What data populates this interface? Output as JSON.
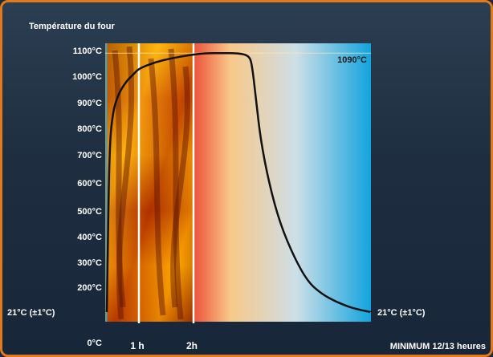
{
  "chart_data": {
    "type": "line",
    "title": "Température du four",
    "y_ticks": [
      "0°C",
      "21°C (±1°C)",
      "200°C",
      "300°C",
      "400°C",
      "500°C",
      "600°C",
      "700°C",
      "800°C",
      "900°C",
      "1000°C",
      "1100°C"
    ],
    "x_ticks": [
      "1 h",
      "2h"
    ],
    "x_end_label": "MINIMUM 12/13 heures",
    "peak_label": "1090°C",
    "end_label": "21°C (±1°C)",
    "series": [
      {
        "points": [
          [
            0,
            21
          ],
          [
            0.02,
            260
          ],
          [
            0.08,
            720
          ],
          [
            0.18,
            860
          ],
          [
            0.35,
            930
          ],
          [
            0.6,
            980
          ],
          [
            0.85,
            1010
          ],
          [
            1.0,
            1030
          ],
          [
            1.3,
            1055
          ],
          [
            1.6,
            1070
          ],
          [
            2.0,
            1085
          ],
          [
            2.5,
            1090
          ],
          [
            3.0,
            1090
          ],
          [
            3.6,
            1090
          ],
          [
            4.0,
            1080
          ],
          [
            4.1,
            1040
          ],
          [
            4.25,
            900
          ],
          [
            4.4,
            760
          ],
          [
            4.7,
            600
          ],
          [
            5.1,
            450
          ],
          [
            5.6,
            320
          ],
          [
            6.1,
            220
          ],
          [
            6.6,
            150
          ],
          [
            7.1,
            95
          ],
          [
            7.6,
            55
          ],
          [
            8.0,
            35
          ],
          [
            8.35,
            21
          ]
        ]
      }
    ],
    "colors": {
      "frame": "#e07a1c",
      "curve": "#111111",
      "gradient": [
        "#ff7a00",
        "#e8241c",
        "#f6c98a",
        "#c6dcea",
        "#14a6df"
      ]
    }
  }
}
